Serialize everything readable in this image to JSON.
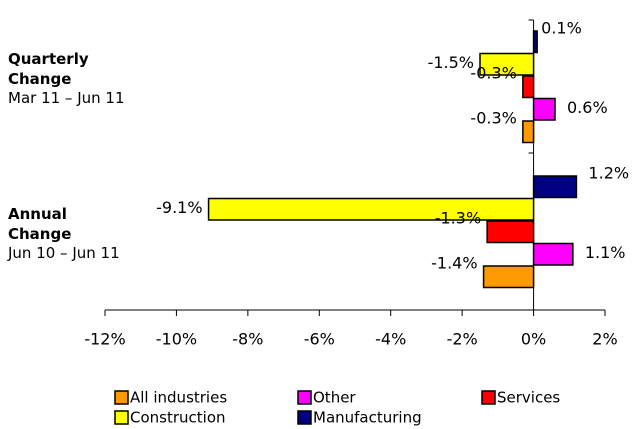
{
  "chart_data": {
    "type": "bar",
    "orientation": "horizontal",
    "categories": [
      "Quarterly Change",
      "Annual Change"
    ],
    "category_periods": [
      "Mar 11 – Jun 11",
      "Jun 10 – Jun 11"
    ],
    "series": [
      {
        "name": "Manufacturing",
        "color": "#000080",
        "values": [
          0.1,
          1.2
        ],
        "value_labels": [
          "0.1%",
          "1.2%"
        ]
      },
      {
        "name": "Construction",
        "color": "#ffff00",
        "values": [
          -1.5,
          -9.1
        ],
        "value_labels": [
          "-1.5%",
          "-9.1%"
        ]
      },
      {
        "name": "Services",
        "color": "#ff0000",
        "values": [
          -0.3,
          -1.3
        ],
        "value_labels": [
          "-0.3%",
          "-1.3%"
        ]
      },
      {
        "name": "Other",
        "color": "#ff00ff",
        "values": [
          0.6,
          1.1
        ],
        "value_labels": [
          "0.6%",
          "1.1%"
        ]
      },
      {
        "name": "All industries",
        "color": "#ff9900",
        "values": [
          -0.3,
          -1.4
        ],
        "value_labels": [
          "-0.3%",
          "-1.4%"
        ]
      }
    ],
    "xlim": [
      -12,
      2
    ],
    "xticks": [
      {
        "value": -12,
        "label": "-12%"
      },
      {
        "value": -10,
        "label": "-10%"
      },
      {
        "value": -8,
        "label": "-8%"
      },
      {
        "value": -6,
        "label": "-6%"
      },
      {
        "value": -4,
        "label": "-4%"
      },
      {
        "value": -2,
        "label": "-2%"
      },
      {
        "value": 0,
        "label": "0%"
      },
      {
        "value": 2,
        "label": "2%"
      }
    ],
    "grid": false
  }
}
